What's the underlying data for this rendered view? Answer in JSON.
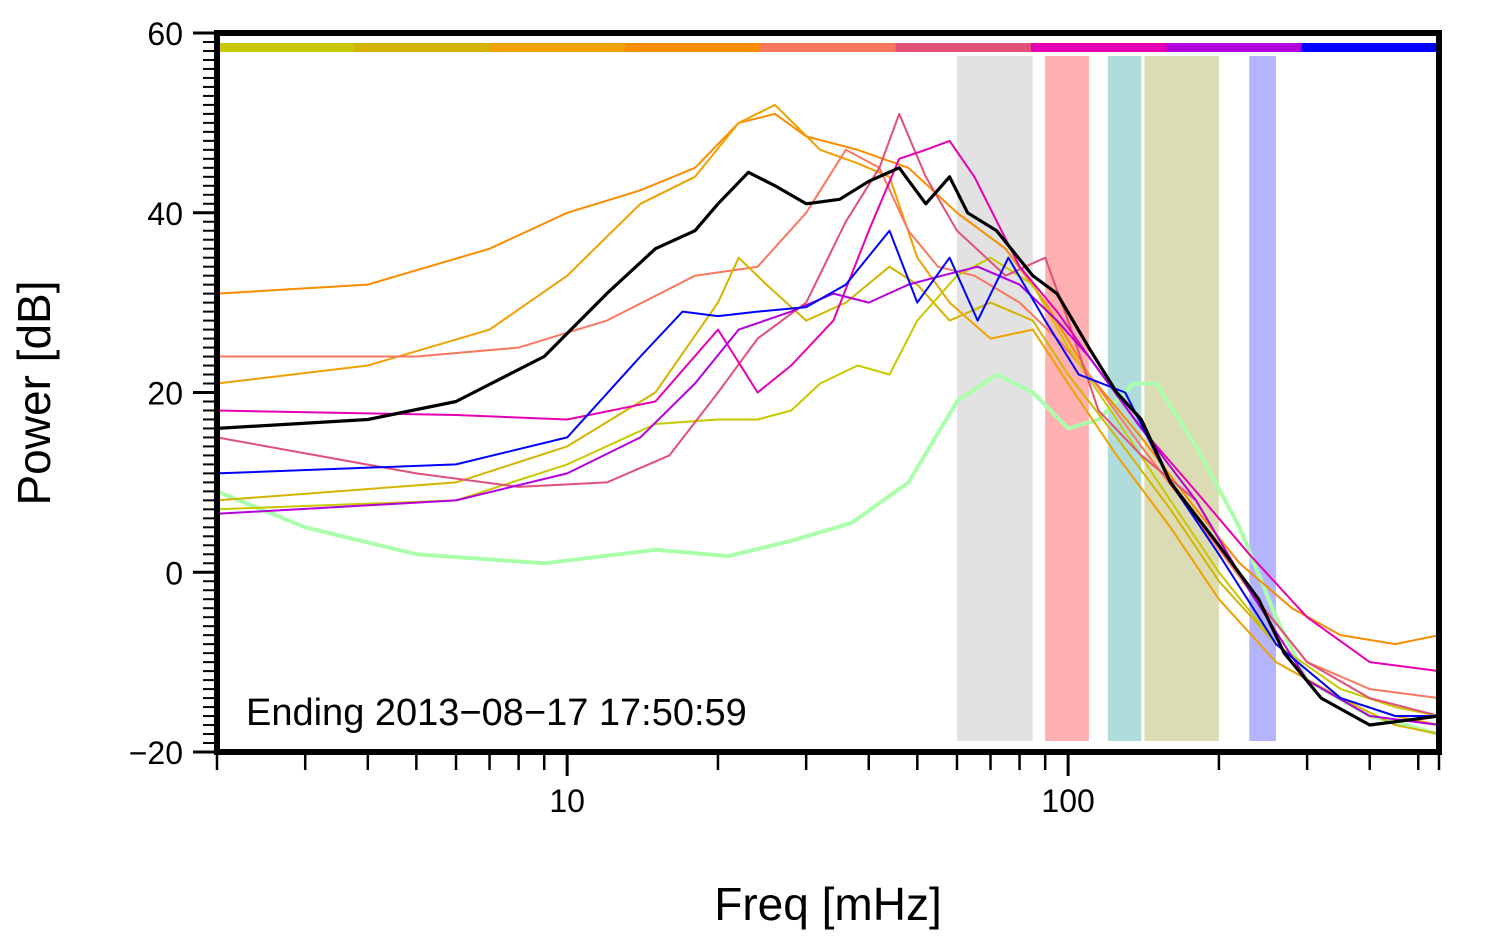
{
  "chart_data": {
    "type": "line",
    "xlabel": "Freq [mHz]",
    "ylabel": "Power [dB]",
    "xscale": "log",
    "xlim": [
      2,
      550
    ],
    "ylim": [
      -20,
      60
    ],
    "x_ticks": [
      {
        "value": 10,
        "label": "10"
      },
      {
        "value": 100,
        "label": "100"
      }
    ],
    "y_ticks": [
      {
        "value": -20,
        "label": "−20"
      },
      {
        "value": 0,
        "label": "0"
      },
      {
        "value": 20,
        "label": "20"
      },
      {
        "value": 40,
        "label": "40"
      },
      {
        "value": 60,
        "label": "60"
      }
    ],
    "annotation": "Ending 2013−08−17 17:50:59",
    "grid": false,
    "legend": "none",
    "color_bar": [
      "#c8c800",
      "#d4b400",
      "#f0a000",
      "#fa8c00",
      "#fa7860",
      "#e05078",
      "#e600b4",
      "#b400dc",
      "#0000ff"
    ],
    "bands": [
      {
        "x0": 60,
        "x1": 85,
        "color": "#e2e2e2"
      },
      {
        "x0": 90,
        "x1": 110,
        "color": "#ffb0b0"
      },
      {
        "x0": 120,
        "x1": 140,
        "color": "#b0dcdc"
      },
      {
        "x0": 142,
        "x1": 200,
        "color": "#dcdcb4"
      },
      {
        "x0": 230,
        "x1": 260,
        "color": "#b4b4ff"
      }
    ],
    "series": [
      {
        "color": "#aaffaa",
        "width": 4,
        "points": [
          [
            2,
            9
          ],
          [
            3,
            5
          ],
          [
            5,
            2
          ],
          [
            9,
            1
          ],
          [
            15,
            2.5
          ],
          [
            21,
            1.8
          ],
          [
            28,
            3.5
          ],
          [
            37,
            5.5
          ],
          [
            48,
            10
          ],
          [
            60,
            19
          ],
          [
            72,
            22
          ],
          [
            85,
            20
          ],
          [
            100,
            16
          ],
          [
            115,
            17
          ],
          [
            135,
            21
          ],
          [
            150,
            21
          ],
          [
            180,
            14
          ],
          [
            220,
            5
          ],
          [
            260,
            -5
          ],
          [
            300,
            -12
          ],
          [
            400,
            -16
          ],
          [
            550,
            -18
          ]
        ]
      },
      {
        "color": "#fa8c00",
        "width": 2,
        "points": [
          [
            2,
            31
          ],
          [
            4,
            32
          ],
          [
            7,
            36
          ],
          [
            10,
            40
          ],
          [
            14,
            42.5
          ],
          [
            18,
            45
          ],
          [
            22,
            50
          ],
          [
            26,
            51
          ],
          [
            30,
            48.5
          ],
          [
            38,
            47
          ],
          [
            48,
            45
          ],
          [
            60,
            40
          ],
          [
            75,
            36
          ],
          [
            90,
            30
          ],
          [
            110,
            22
          ],
          [
            140,
            15
          ],
          [
            180,
            7
          ],
          [
            220,
            1
          ],
          [
            280,
            -4
          ],
          [
            350,
            -7
          ],
          [
            450,
            -8
          ],
          [
            550,
            -7
          ]
        ]
      },
      {
        "color": "#f0a000",
        "width": 2,
        "points": [
          [
            2,
            21
          ],
          [
            4,
            23
          ],
          [
            7,
            27
          ],
          [
            10,
            33
          ],
          [
            14,
            41
          ],
          [
            18,
            44
          ],
          [
            22,
            50
          ],
          [
            26,
            52
          ],
          [
            32,
            47
          ],
          [
            38,
            45.5
          ],
          [
            44,
            44
          ],
          [
            50,
            35
          ],
          [
            58,
            30
          ],
          [
            70,
            26
          ],
          [
            85,
            27
          ],
          [
            100,
            21
          ],
          [
            125,
            13
          ],
          [
            160,
            5
          ],
          [
            200,
            -3
          ],
          [
            260,
            -10
          ],
          [
            350,
            -14
          ],
          [
            450,
            -16
          ],
          [
            550,
            -17
          ]
        ]
      },
      {
        "color": "#fa7860",
        "width": 2,
        "points": [
          [
            2,
            24
          ],
          [
            5,
            24
          ],
          [
            8,
            25
          ],
          [
            12,
            28
          ],
          [
            18,
            33
          ],
          [
            24,
            34
          ],
          [
            30,
            40
          ],
          [
            36,
            47
          ],
          [
            42,
            45
          ],
          [
            48,
            38
          ],
          [
            55,
            34
          ],
          [
            65,
            33
          ],
          [
            80,
            30
          ],
          [
            95,
            26
          ],
          [
            110,
            22
          ],
          [
            140,
            14
          ],
          [
            180,
            6
          ],
          [
            230,
            -2
          ],
          [
            300,
            -10
          ],
          [
            400,
            -13
          ],
          [
            550,
            -14
          ]
        ]
      },
      {
        "color": "#d4b400",
        "width": 2,
        "points": [
          [
            2,
            8
          ],
          [
            6,
            10
          ],
          [
            10,
            14
          ],
          [
            15,
            20
          ],
          [
            20,
            30
          ],
          [
            22,
            35
          ],
          [
            25,
            32
          ],
          [
            30,
            28
          ],
          [
            36,
            30
          ],
          [
            44,
            34
          ],
          [
            50,
            32
          ],
          [
            58,
            28
          ],
          [
            70,
            30
          ],
          [
            85,
            28
          ],
          [
            100,
            22
          ],
          [
            125,
            15
          ],
          [
            160,
            7
          ],
          [
            200,
            -1
          ],
          [
            260,
            -8
          ],
          [
            350,
            -14
          ],
          [
            450,
            -17
          ],
          [
            550,
            -18
          ]
        ]
      },
      {
        "color": "#c8c800",
        "width": 2,
        "points": [
          [
            2,
            7
          ],
          [
            6,
            8
          ],
          [
            10,
            12
          ],
          [
            15,
            16.5
          ],
          [
            20,
            17
          ],
          [
            24,
            17
          ],
          [
            28,
            18
          ],
          [
            32,
            21
          ],
          [
            38,
            23
          ],
          [
            44,
            22
          ],
          [
            50,
            28
          ],
          [
            60,
            33
          ],
          [
            70,
            35
          ],
          [
            85,
            32
          ],
          [
            100,
            25
          ],
          [
            125,
            17
          ],
          [
            160,
            8
          ],
          [
            200,
            0
          ],
          [
            260,
            -8
          ],
          [
            350,
            -13
          ],
          [
            450,
            -15
          ],
          [
            550,
            -16
          ]
        ]
      },
      {
        "color": "#e05078",
        "width": 2,
        "points": [
          [
            2,
            15
          ],
          [
            5,
            11
          ],
          [
            8,
            9.5
          ],
          [
            12,
            10
          ],
          [
            16,
            13
          ],
          [
            20,
            20
          ],
          [
            24,
            26
          ],
          [
            30,
            30
          ],
          [
            36,
            39
          ],
          [
            42,
            45
          ],
          [
            46,
            51
          ],
          [
            52,
            44
          ],
          [
            60,
            38
          ],
          [
            75,
            33
          ],
          [
            90,
            35
          ],
          [
            100,
            28
          ],
          [
            115,
            18
          ],
          [
            140,
            13
          ],
          [
            180,
            8
          ],
          [
            230,
            -2
          ],
          [
            300,
            -10
          ],
          [
            400,
            -14
          ],
          [
            550,
            -16
          ]
        ]
      },
      {
        "color": "#e600b4",
        "width": 2,
        "points": [
          [
            2,
            18
          ],
          [
            6,
            17.5
          ],
          [
            10,
            17
          ],
          [
            15,
            19
          ],
          [
            20,
            27
          ],
          [
            24,
            20
          ],
          [
            28,
            23
          ],
          [
            34,
            28
          ],
          [
            40,
            38
          ],
          [
            46,
            46
          ],
          [
            52,
            47
          ],
          [
            58,
            48
          ],
          [
            65,
            44
          ],
          [
            80,
            34
          ],
          [
            95,
            29
          ],
          [
            110,
            24
          ],
          [
            140,
            16
          ],
          [
            180,
            9
          ],
          [
            230,
            2
          ],
          [
            300,
            -5
          ],
          [
            400,
            -10
          ],
          [
            550,
            -11
          ]
        ]
      },
      {
        "color": "#b400dc",
        "width": 2,
        "points": [
          [
            2,
            6.5
          ],
          [
            6,
            8
          ],
          [
            10,
            11
          ],
          [
            14,
            15
          ],
          [
            18,
            21
          ],
          [
            22,
            27
          ],
          [
            28,
            29
          ],
          [
            34,
            31
          ],
          [
            40,
            30
          ],
          [
            48,
            32
          ],
          [
            56,
            33
          ],
          [
            66,
            34
          ],
          [
            80,
            32
          ],
          [
            95,
            28
          ],
          [
            110,
            24
          ],
          [
            140,
            16
          ],
          [
            180,
            8
          ],
          [
            230,
            -2
          ],
          [
            300,
            -12
          ],
          [
            400,
            -16
          ],
          [
            550,
            -17
          ]
        ]
      },
      {
        "color": "#0000ff",
        "width": 2,
        "points": [
          [
            2,
            11
          ],
          [
            6,
            12
          ],
          [
            10,
            15
          ],
          [
            14,
            24
          ],
          [
            17,
            29
          ],
          [
            20,
            28.5
          ],
          [
            24,
            29
          ],
          [
            30,
            29.5
          ],
          [
            36,
            32
          ],
          [
            44,
            38
          ],
          [
            50,
            30
          ],
          [
            58,
            35
          ],
          [
            66,
            28
          ],
          [
            76,
            35
          ],
          [
            90,
            28
          ],
          [
            105,
            22
          ],
          [
            130,
            20
          ],
          [
            160,
            10
          ],
          [
            200,
            2
          ],
          [
            260,
            -8
          ],
          [
            350,
            -14
          ],
          [
            450,
            -16
          ],
          [
            550,
            -16
          ]
        ]
      },
      {
        "color": "#000000",
        "width": 3.2,
        "points": [
          [
            2,
            16
          ],
          [
            4,
            17
          ],
          [
            6,
            19
          ],
          [
            9,
            24
          ],
          [
            12,
            31
          ],
          [
            15,
            36
          ],
          [
            18,
            38
          ],
          [
            20,
            41
          ],
          [
            23,
            44.5
          ],
          [
            26,
            43
          ],
          [
            30,
            41
          ],
          [
            35,
            41.5
          ],
          [
            40,
            43.5
          ],
          [
            46,
            45
          ],
          [
            52,
            41
          ],
          [
            58,
            44
          ],
          [
            63,
            40
          ],
          [
            72,
            38
          ],
          [
            85,
            33
          ],
          [
            95,
            31
          ],
          [
            110,
            25
          ],
          [
            125,
            20
          ],
          [
            140,
            17
          ],
          [
            160,
            10
          ],
          [
            200,
            3
          ],
          [
            240,
            -3
          ],
          [
            270,
            -9
          ],
          [
            320,
            -14
          ],
          [
            400,
            -17
          ],
          [
            550,
            -16
          ]
        ]
      }
    ]
  }
}
